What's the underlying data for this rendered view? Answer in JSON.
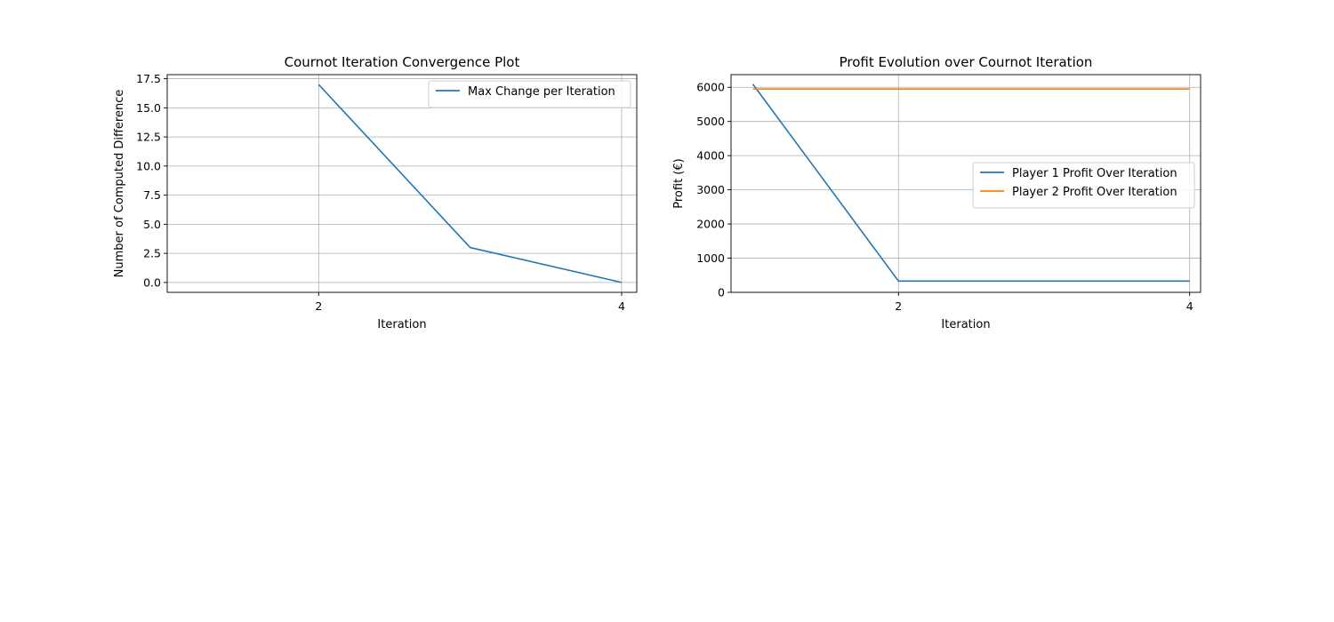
{
  "chart_data": [
    {
      "type": "line",
      "title": "Cournot Iteration Convergence Plot",
      "xlabel": "Iteration",
      "ylabel": "Number of Computed Difference",
      "x": [
        2,
        3,
        4
      ],
      "xlim": [
        1,
        4.1
      ],
      "xticks": [
        2,
        4
      ],
      "xtick_labels": [
        "2",
        "4"
      ],
      "ylim": [
        -0.85,
        17.85
      ],
      "yticks": [
        0,
        2.5,
        5,
        7.5,
        10,
        12.5,
        15,
        17.5
      ],
      "ytick_labels": [
        "0.0",
        "2.5",
        "5.0",
        "7.5",
        "10.0",
        "12.5",
        "15.0",
        "17.5"
      ],
      "grid": true,
      "legend_position": "top-right",
      "series": [
        {
          "name": "Max Change per Iteration",
          "color": "#1f77b4",
          "values": [
            17,
            3,
            0
          ]
        }
      ]
    },
    {
      "type": "line",
      "title": "Profit Evolution over Cournot Iteration",
      "xlabel": "Iteration",
      "ylabel": "Profit (€)",
      "x": [
        1,
        2,
        3,
        4
      ],
      "xlim": [
        0.85,
        4.075
      ],
      "xticks": [
        2,
        4
      ],
      "xtick_labels": [
        "2",
        "4"
      ],
      "ylim": [
        0,
        6370
      ],
      "yticks": [
        0,
        1000,
        2000,
        3000,
        4000,
        5000,
        6000
      ],
      "ytick_labels": [
        "0",
        "1000",
        "2000",
        "3000",
        "4000",
        "5000",
        "6000"
      ],
      "grid": true,
      "legend_position": "center-right",
      "series": [
        {
          "name": "Player 1 Profit Over Iteration",
          "color": "#1f77b4",
          "values": [
            6090,
            330,
            330,
            330
          ]
        },
        {
          "name": "Player 2 Profit Over Iteration",
          "color": "#ff7f0e",
          "values": [
            5950,
            5950,
            5950,
            5950
          ]
        }
      ]
    }
  ]
}
